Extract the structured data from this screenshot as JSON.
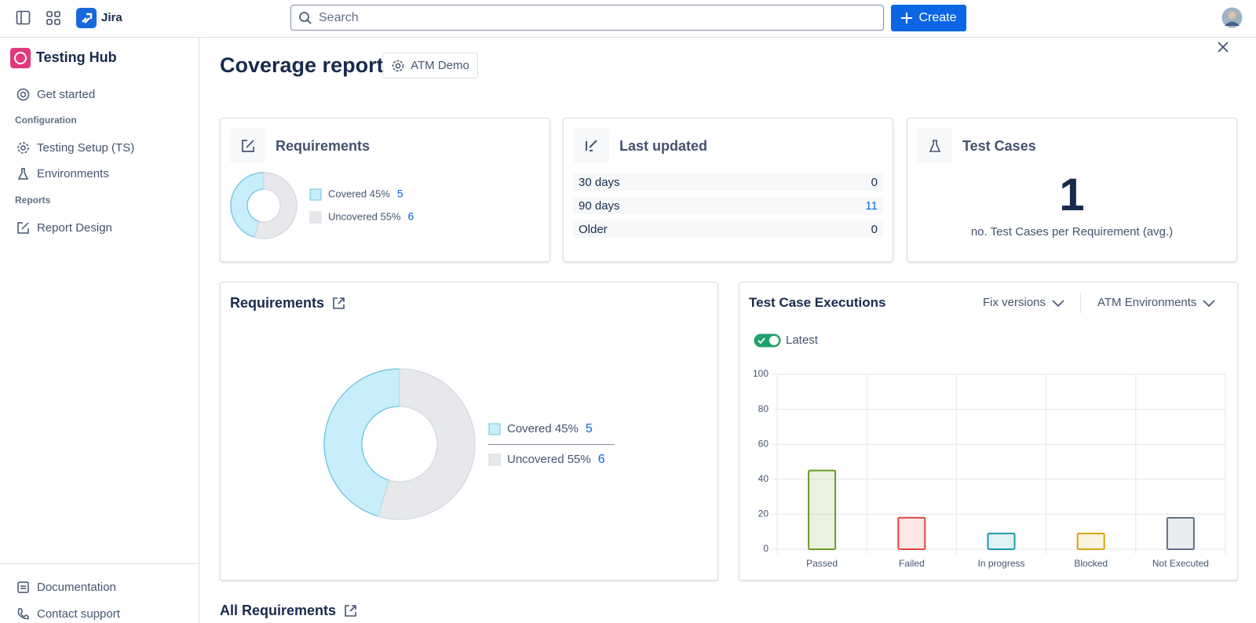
{
  "topbar": {
    "app": "Jira",
    "search": "Search",
    "create": "Create"
  },
  "sidebar": {
    "title": "Testing Hub",
    "get_started": "Get started",
    "sections": [
      {
        "heading": "Configuration",
        "items": [
          "Testing Setup (TS)",
          "Environments"
        ]
      },
      {
        "heading": "Reports",
        "items": [
          "Report Design"
        ]
      }
    ],
    "footer": [
      "Documentation",
      "Contact support"
    ]
  },
  "header": {
    "title": "Coverage report",
    "project": "ATM Demo"
  },
  "last_updated": {
    "title": "Last updated",
    "rows": [
      {
        "label": "30 days",
        "value": 0
      },
      {
        "label": "90 days",
        "value": 11
      },
      {
        "label": "Older",
        "value": 0
      }
    ]
  },
  "test_cases": {
    "title": "Test Cases",
    "value": 1,
    "caption": "no. Test Cases per Requirement (avg.)"
  },
  "executions_controls": {
    "filters": [
      "Fix versions",
      "ATM Environments"
    ],
    "toggle": "Latest"
  },
  "all_requirements": "All Requirements",
  "chart_data": [
    {
      "type": "pie",
      "title": "Requirements",
      "categories": [
        "Covered 45%",
        "Uncovered 55%"
      ],
      "values": [
        5,
        6
      ],
      "colors": [
        "#c8edfb",
        "#e6e8eb"
      ]
    },
    {
      "type": "pie",
      "title": "Requirements",
      "categories": [
        "Covered 45%",
        "Uncovered 55%"
      ],
      "values": [
        5,
        6
      ],
      "colors": [
        "#c8edfb",
        "#e6e8eb"
      ]
    },
    {
      "type": "bar",
      "title": "Test Case Executions",
      "categories": [
        "Passed",
        "Failed",
        "In progress",
        "Blocked",
        "Not Executed"
      ],
      "values": [
        45,
        18,
        9,
        9,
        18
      ],
      "colors": [
        "#6a9a23",
        "#e2483d",
        "#1d9aaa",
        "#d2a511",
        "#626f86"
      ],
      "ylim": [
        0,
        100
      ],
      "yticks": [
        0,
        20,
        40,
        60,
        80,
        100
      ],
      "grid": true
    }
  ]
}
